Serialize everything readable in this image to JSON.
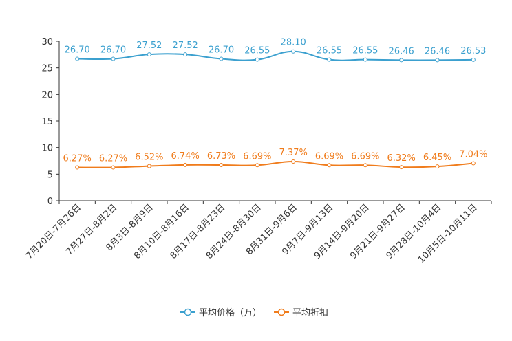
{
  "chart_data": {
    "type": "line",
    "categories": [
      "7月20日-7月26日",
      "7月27日-8月2日",
      "8月3日-8月9日",
      "8月10日-8月16日",
      "8月17日-8月23日",
      "8月24日-8月30日",
      "8月31日-9月6日",
      "9月7日-9月13日",
      "9月14日-9月20日",
      "9月21日-9月27日",
      "9月28日-10月4日",
      "10月5日-10月11日"
    ],
    "ylim": [
      0,
      30
    ],
    "yticks": [
      0,
      5,
      10,
      15,
      20,
      25,
      30
    ],
    "series": [
      {
        "name": "平均价格（万）",
        "color": "#3ba0cf",
        "values": [
          26.7,
          26.7,
          27.52,
          27.52,
          26.7,
          26.55,
          28.1,
          26.55,
          26.55,
          26.46,
          26.46,
          26.53
        ],
        "labels": [
          "26.70",
          "26.70",
          "27.52",
          "27.52",
          "26.70",
          "26.55",
          "28.10",
          "26.55",
          "26.55",
          "26.46",
          "26.46",
          "26.53"
        ]
      },
      {
        "name": "平均折扣",
        "color": "#f07c1c",
        "values": [
          6.27,
          6.27,
          6.52,
          6.74,
          6.73,
          6.69,
          7.37,
          6.69,
          6.69,
          6.32,
          6.45,
          7.04
        ],
        "labels": [
          "6.27%",
          "6.27%",
          "6.52%",
          "6.74%",
          "6.73%",
          "6.69%",
          "7.37%",
          "6.69%",
          "6.69%",
          "6.32%",
          "6.45%",
          "7.04%"
        ]
      }
    ]
  }
}
